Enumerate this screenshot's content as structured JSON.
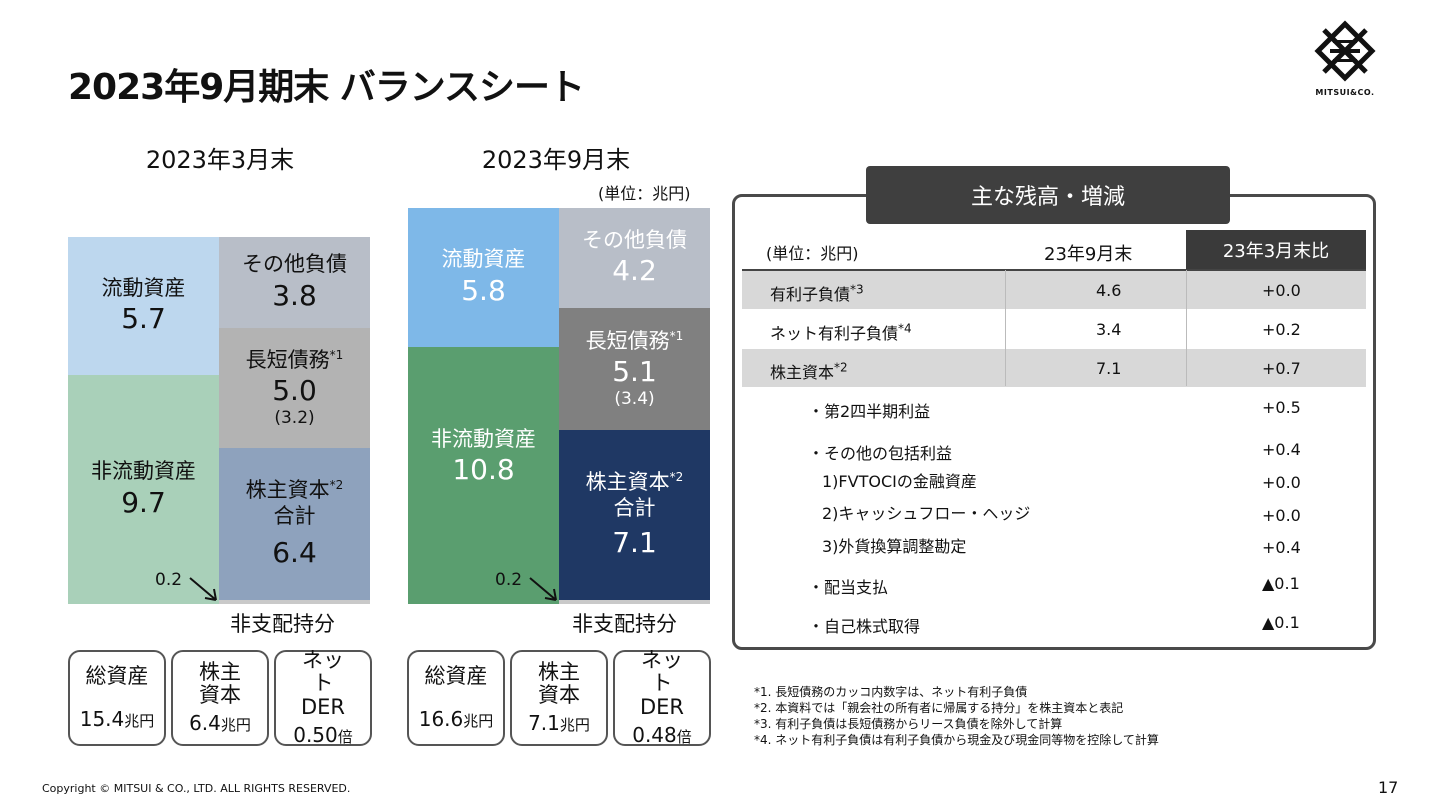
{
  "title": "2023年9月期末 バランスシート",
  "logo_text": "MITSUI&CO.",
  "left": {
    "period": "2023年3月末",
    "current_assets": {
      "label": "流動資産",
      "value": "5.7"
    },
    "noncurrent_assets": {
      "label": "非流動資産",
      "value": "9.7"
    },
    "other_liab": {
      "label": "その他負債",
      "value": "3.8"
    },
    "debt": {
      "label": "長短債務",
      "sup": "*1",
      "value": "5.0",
      "sub": "(3.2)"
    },
    "equity": {
      "label1": "株主資本",
      "sup": "*2",
      "label2": "合計",
      "value": "6.4"
    },
    "nci_value": "0.2",
    "nci_label": "非支配持分",
    "boxes": [
      {
        "label": "総資産",
        "value": "15.4",
        "unit": "兆円"
      },
      {
        "label": "株主 資本",
        "value": "6.4",
        "unit": "兆円"
      },
      {
        "label": "ネット DER",
        "value": "0.50",
        "unit": "倍"
      }
    ]
  },
  "right": {
    "period": "2023年9月末",
    "unit": "(単位：兆円)",
    "current_assets": {
      "label": "流動資産",
      "value": "5.8"
    },
    "noncurrent_assets": {
      "label": "非流動資産",
      "value": "10.8"
    },
    "other_liab": {
      "label": "その他負債",
      "value": "4.2"
    },
    "debt": {
      "label": "長短債務",
      "sup": "*1",
      "value": "5.1",
      "sub": "(3.4)"
    },
    "equity": {
      "label1": "株主資本",
      "sup": "*2",
      "label2": "合計",
      "value": "7.1"
    },
    "nci_value": "0.2",
    "nci_label": "非支配持分",
    "boxes": [
      {
        "label": "総資産",
        "value": "16.6",
        "unit": "兆円"
      },
      {
        "label": "株主 資本",
        "value": "7.1",
        "unit": "兆円"
      },
      {
        "label": "ネット DER",
        "value": "0.48",
        "unit": "倍"
      }
    ]
  },
  "panel": {
    "title": "主な残高・増減",
    "unit": "(単位：兆円)",
    "col1": "23年9月末",
    "col2": "23年3月末比",
    "rows": [
      {
        "label": "有利子負債",
        "sup": "*3",
        "value": "4.6",
        "diff": "+0.0"
      },
      {
        "label": "ネット有利子負債",
        "sup": "*4",
        "value": "3.4",
        "diff": "+0.2"
      },
      {
        "label": "株主資本",
        "sup": "*2",
        "value": "7.1",
        "diff": "+0.7"
      }
    ],
    "sub_rows": [
      {
        "label": "・第2四半期利益",
        "diff": "+0.5"
      },
      {
        "label": "・その他の包括利益",
        "diff": "+0.4"
      },
      {
        "label": "1)FVTOCIの金融資産",
        "diff": "+0.0"
      },
      {
        "label": "2)キャッシュフロー・ヘッジ",
        "diff": "+0.0"
      },
      {
        "label": "3)外貨換算調整勘定",
        "diff": "+0.4"
      },
      {
        "label": "・配当支払",
        "diff": "▲0.1"
      },
      {
        "label": "・自己株式取得",
        "diff": "▲0.1"
      }
    ]
  },
  "notes": [
    "*1. 長短債務のカッコ内数字は、ネット有利子負債",
    "*2. 本資料では「親会社の所有者に帰属する持分」を株主資本と表記",
    "*3. 有利子負債は長短債務からリース負債を除外して計算",
    "*4. ネット有利子負債は有利子負債から現金及び現金同等物を控除して計算"
  ],
  "copyright": "Copyright © MITSUI & CO., LTD. ALL RIGHTS RESERVED.",
  "page_number": "17",
  "colors": {
    "left_current": "#bdd7ee",
    "left_noncurrent": "#a9d0b9",
    "left_other": "#b8bec8",
    "left_debt": "#b3b3b3",
    "left_equity": "#8ea2bd",
    "right_current": "#7eb8e8",
    "right_noncurrent": "#5a9e6f",
    "right_other": "#b8bec8",
    "right_debt": "#808080",
    "right_equity": "#1f3864"
  }
}
